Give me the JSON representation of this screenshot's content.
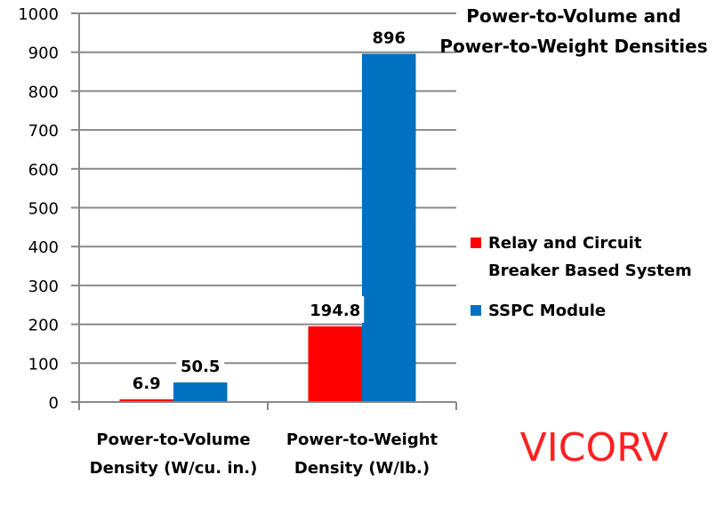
{
  "chart_data": {
    "type": "bar",
    "title": "Power-to-Volume and Power-to-Weight Densities",
    "title_lines": [
      "Power-to-Volume and",
      "Power-to-Weight Densities"
    ],
    "categories": [
      [
        "Power-to-Volume",
        "Density (W/cu. in.)"
      ],
      [
        "Power-to-Weight",
        "Density (W/lb.)"
      ]
    ],
    "series": [
      {
        "name": "Relay and Circuit Breaker Based System",
        "name_lines": [
          "Relay and Circuit",
          "Breaker Based System"
        ],
        "color": "#ff0000",
        "values": [
          6.9,
          194.8
        ],
        "labels": [
          "6.9",
          "194.8"
        ]
      },
      {
        "name": "SSPC Module",
        "name_lines": [
          "SSPC Module"
        ],
        "color": "#0070c0",
        "values": [
          50.5,
          896
        ],
        "labels": [
          "50.5",
          "896"
        ]
      }
    ],
    "ylim": [
      0,
      1000
    ],
    "yticks": [
      0,
      100,
      200,
      300,
      400,
      500,
      600,
      700,
      800,
      900,
      1000
    ],
    "grid": true,
    "legend": "right",
    "xlabel": "",
    "ylabel": ""
  },
  "watermark": "VICORV",
  "watermark_color": "#ff2020"
}
